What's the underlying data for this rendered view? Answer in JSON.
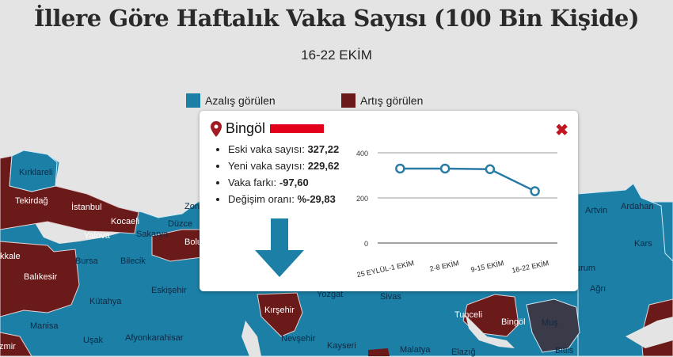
{
  "title": "İllere Göre Haftalık Vaka Sayısı (100 Bin Kişide)",
  "subtitle": "16-22 EKİM",
  "legend": [
    {
      "label": "Azalış görülen",
      "color": "#1b7fa6"
    },
    {
      "label": "Artış görülen",
      "color": "#6b1a1a"
    }
  ],
  "colors": {
    "decrease": "#1b7fa6",
    "increase": "#6b1a1a",
    "selected": "#3b3a48",
    "sea": "#e4e4e4"
  },
  "provinces": [
    "Kırklareli",
    "Tekirdağ",
    "İstanbul",
    "Kocaeli",
    "Yalova",
    "Sakarya",
    "Düzce",
    "Zong",
    "Bolu",
    "kkale",
    "Bursa",
    "Bilecik",
    "Balıkesir",
    "Eskişehir",
    "Kütahya",
    "Manisa",
    "Uşak",
    "Afyonkarahisar",
    "İzmir",
    "Kırşehir",
    "Yozgat",
    "Sivas",
    "Nevşehir",
    "Kayseri",
    "Malatya",
    "Elazığ",
    "Tunceli",
    "Bingöl",
    "Muş",
    "Bitlis",
    "Ağrı",
    "Artvin",
    "Ardahan",
    "Kars",
    "urum"
  ],
  "popup": {
    "province": "Bingöl",
    "icon": "map-pin-icon",
    "close_icon": "close-x-icon",
    "stats": [
      {
        "label": "Eski vaka sayısı:",
        "value": "327,22"
      },
      {
        "label": "Yeni vaka sayısı:",
        "value": "229,62"
      },
      {
        "label": "Vaka farkı:",
        "value": "-97,60"
      },
      {
        "label": "Değişim oranı:",
        "value": "%-29,83"
      }
    ],
    "trend_icon": "arrow-down-icon"
  },
  "chart_data": {
    "type": "line",
    "categories": [
      "25 EYLÜL-1 EKİM",
      "2-8 EKİM",
      "9-15 EKİM",
      "16-22 EKİM"
    ],
    "values": [
      330,
      330,
      327.22,
      229.62
    ],
    "yticks": [
      0,
      200,
      400
    ],
    "ylim": [
      0,
      400
    ],
    "grid": true,
    "color": "#2a7ba6"
  }
}
